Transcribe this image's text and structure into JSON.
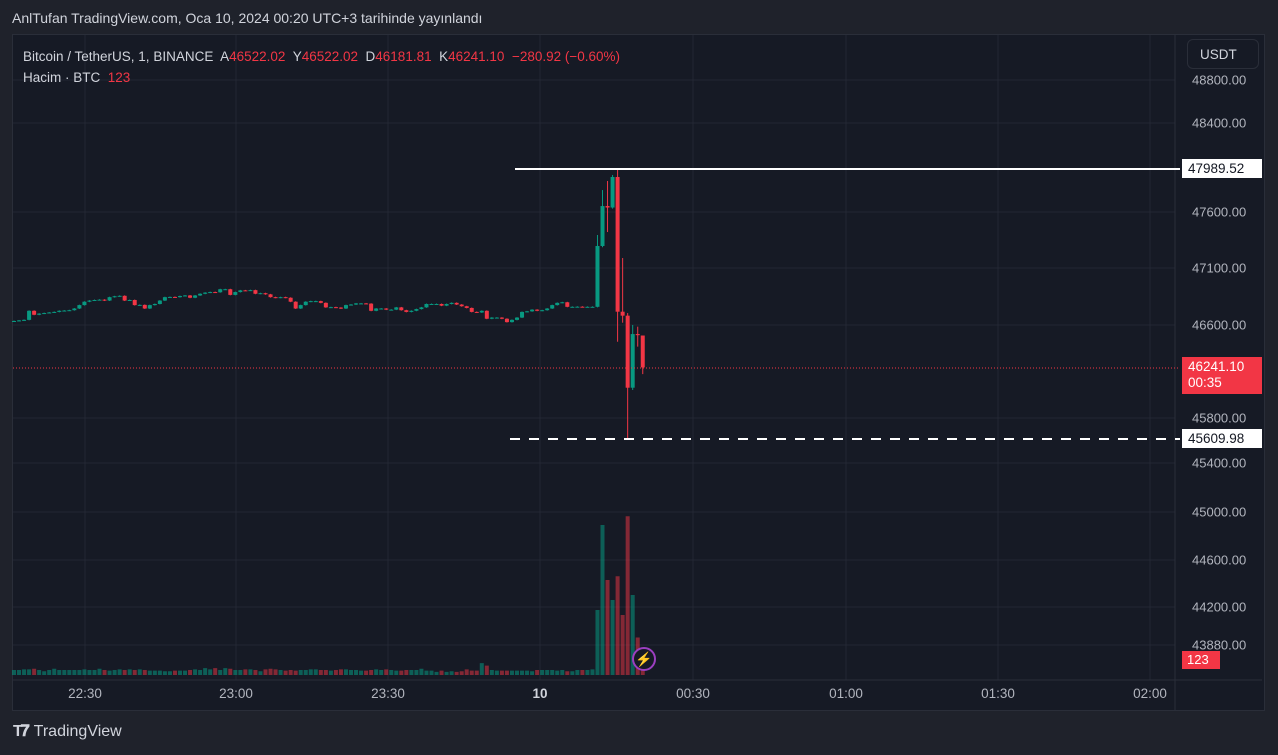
{
  "published_line": "AnlTufan TradingView.com, Oca 10, 2024 00:20 UTC+3 tarihinde yayınlandı",
  "legend": {
    "symbol": "Bitcoin / TetherUS, 1, BINANCE",
    "open_label": "A",
    "open": "46522.02",
    "high_label": "Y",
    "high": "46522.02",
    "low_label": "D",
    "low": "46181.81",
    "close_label": "K",
    "close": "46241.10",
    "change": "−280.92 (−0.60%)",
    "volume_label": "Hacim · BTC",
    "volume": "123"
  },
  "currency_button": "USDT",
  "price_axis_labels": [
    "48800.00",
    "48400.00",
    "47600.00",
    "47100.00",
    "46600.00",
    "45800.00",
    "45400.00",
    "45000.00",
    "44600.00",
    "44200.00",
    "43880.00"
  ],
  "markers": {
    "high_line": "47989.52",
    "low_line": "45609.98",
    "current_price": "46241.10",
    "countdown": "00:35",
    "current_volume": "123"
  },
  "time_axis_labels": [
    "22:30",
    "23:00",
    "23:30",
    "10",
    "00:30",
    "01:00",
    "01:30",
    "02:00"
  ],
  "colors": {
    "up": "#089981",
    "down": "#f23645",
    "accent_icon": "#9c3fc0"
  },
  "icons": {
    "alert": "lightning-bolt-icon",
    "logo": "tradingview-logo"
  },
  "brand": "TradingView",
  "chart_data": {
    "type": "candlestick",
    "symbol": "Bitcoin / TetherUS",
    "interval": "1",
    "pre_move_closes": [
      46650,
      46655,
      46660,
      46740,
      46705,
      46715,
      46720,
      46725,
      46730,
      46740,
      46742,
      46745,
      46760,
      46790,
      46820,
      46830,
      46835,
      46838,
      46830,
      46860,
      46868,
      46872,
      46830,
      46835,
      46790,
      46792,
      46760,
      46790,
      46800,
      46830,
      46860,
      46862,
      46860,
      46870,
      46875,
      46855,
      46875,
      46890,
      46900,
      46905,
      46903,
      46930,
      46930,
      46880,
      46905,
      46920,
      46918,
      46922,
      46890,
      46895,
      46885,
      46860,
      46855,
      46860,
      46855,
      46820,
      46760,
      46790,
      46820,
      46825,
      46825,
      46810,
      46770,
      46772,
      46768,
      46760,
      46790,
      46795,
      46805,
      46805,
      46803,
      46740,
      46760,
      46760,
      46750,
      46750,
      46770,
      46745,
      46730,
      46740,
      46755,
      46770,
      46800,
      46800,
      46800,
      46785,
      46800,
      46810,
      46795,
      46780,
      46765,
      46730,
      46725,
      46740,
      46670,
      46680,
      46680,
      46670,
      46640,
      46660,
      46680,
      46730,
      46735,
      46750,
      46740,
      46745,
      46760,
      46790,
      46810,
      46815,
      46775,
      46775,
      46776,
      46774,
      46775,
      46775
    ],
    "spike_ohlc": [
      [
        46775,
        47408,
        46770,
        47311
      ],
      [
        47311,
        47804,
        47300,
        47663
      ],
      [
        47663,
        47884,
        47434,
        47650
      ],
      [
        47650,
        47937,
        47640,
        47919
      ],
      [
        47919,
        47989.52,
        46467,
        46732
      ],
      [
        46732,
        47205,
        46635,
        46697
      ],
      [
        46697,
        46720,
        45609.98,
        46062
      ],
      [
        46062,
        46615,
        46042,
        46535
      ],
      [
        46535,
        46600,
        46424,
        46525
      ],
      [
        46522.02,
        46522.02,
        46181.81,
        46241.1
      ]
    ],
    "volume_btc": [
      40,
      40,
      45,
      45,
      50,
      40,
      30,
      40,
      50,
      40,
      40,
      40,
      40,
      40,
      45,
      40,
      40,
      50,
      40,
      35,
      40,
      45,
      40,
      45,
      40,
      45,
      40,
      35,
      35,
      35,
      30,
      30,
      35,
      35,
      35,
      40,
      45,
      40,
      55,
      45,
      55,
      40,
      55,
      50,
      40,
      40,
      45,
      45,
      40,
      30,
      45,
      50,
      45,
      40,
      35,
      40,
      35,
      40,
      40,
      45,
      45,
      40,
      40,
      35,
      40,
      45,
      45,
      40,
      40,
      35,
      35,
      40,
      45,
      40,
      45,
      40,
      35,
      35,
      40,
      40,
      40,
      50,
      35,
      35,
      25,
      35,
      25,
      30,
      25,
      30,
      45,
      35,
      35,
      95,
      75,
      40,
      35,
      35,
      35,
      35,
      35,
      35,
      35,
      30,
      40,
      40,
      40,
      40,
      35,
      40,
      30,
      30,
      40,
      40,
      40,
      45,
      520,
      1200,
      760,
      600,
      790,
      480,
      1270,
      640,
      300,
      123
    ],
    "price_high": 47989.52,
    "price_low": 45609.98
  }
}
